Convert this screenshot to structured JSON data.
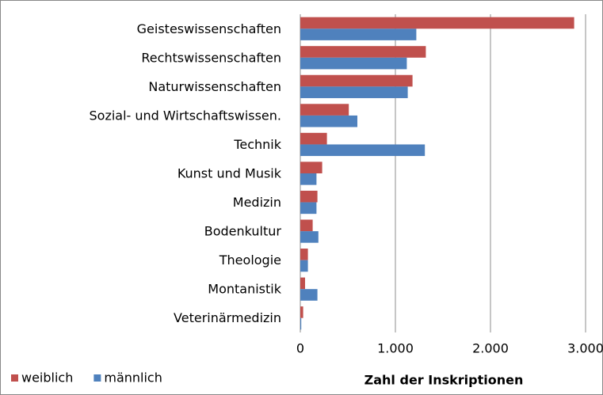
{
  "chart_data": {
    "type": "bar",
    "orientation": "horizontal",
    "categories": [
      "Geisteswissenschaften",
      "Rechtswissenschaften",
      "Naturwissenschaften",
      "Sozial- und Wirtschaftswissen.",
      "Technik",
      "Kunst und Musik",
      "Medizin",
      "Bodenkultur",
      "Theologie",
      "Montanistik",
      "Veterinärmedizin"
    ],
    "series": [
      {
        "name": "weiblich",
        "color": "#c0504d",
        "values": [
          2880,
          1320,
          1180,
          510,
          280,
          230,
          180,
          130,
          80,
          50,
          30
        ]
      },
      {
        "name": "männlich",
        "color": "#4f81bd",
        "values": [
          1220,
          1120,
          1130,
          600,
          1310,
          170,
          170,
          190,
          80,
          180,
          10
        ]
      }
    ],
    "xlabel": "Zahl der Inskriptionen",
    "xlim": [
      0,
      3000
    ],
    "xticks": [
      0,
      {
        "value": 1000,
        "label": "1.000"
      },
      {
        "value": 2000,
        "label": "2.000"
      },
      {
        "value": 3000,
        "label": "3.000"
      }
    ],
    "grid": true,
    "legend": "bottom-left"
  }
}
